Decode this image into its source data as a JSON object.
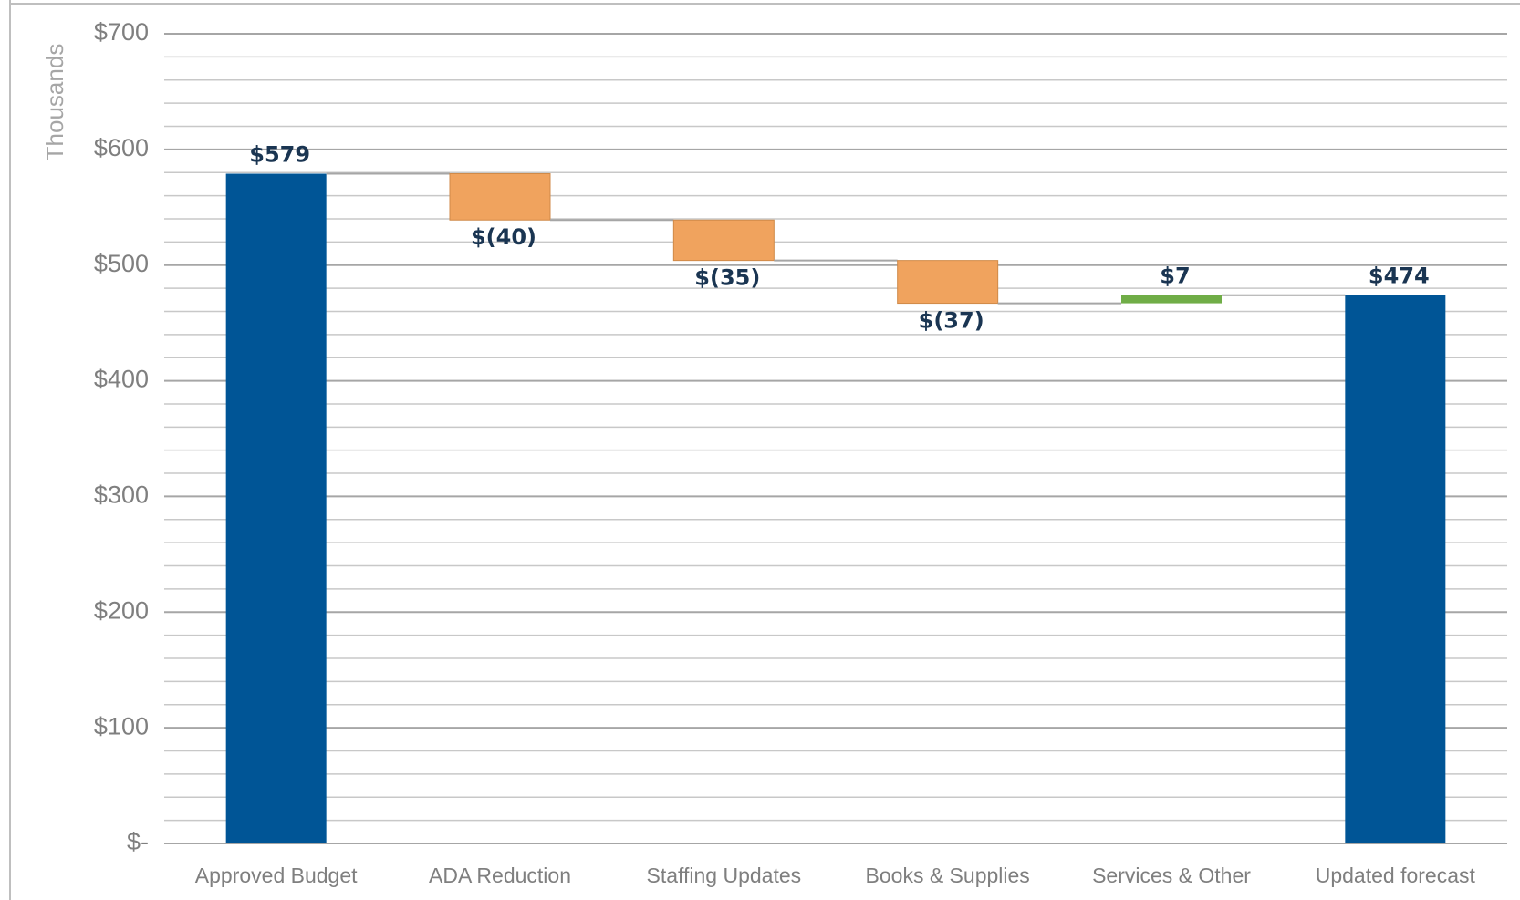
{
  "chart_data": {
    "type": "waterfall",
    "y_label": "Thousands",
    "categories": [
      "Approved Budget",
      "ADA Reduction",
      "Staffing Updates",
      "Books & Supplies",
      "Services & Other",
      "Updated forecast"
    ],
    "values": [
      579,
      -40,
      -35,
      -37,
      7,
      474
    ],
    "value_labels": [
      "$579",
      "$(40)",
      "$(35)",
      "$(37)",
      "$7",
      "$474"
    ],
    "totals": [
      true,
      false,
      false,
      false,
      false,
      true
    ],
    "colors": {
      "total": "#005596",
      "decrease": "#f0a35e",
      "increase": "#70ad47"
    },
    "ylim": [
      0,
      700
    ],
    "yticks": [
      {
        "value": 0,
        "label": "$-"
      },
      {
        "value": 100,
        "label": "$100"
      },
      {
        "value": 200,
        "label": "$200"
      },
      {
        "value": 300,
        "label": "$300"
      },
      {
        "value": 400,
        "label": "$400"
      },
      {
        "value": 500,
        "label": "$500"
      },
      {
        "value": 600,
        "label": "$600"
      },
      {
        "value": 700,
        "label": "$700"
      }
    ],
    "minor_yticks": [
      20,
      40,
      60,
      80,
      120,
      140,
      160,
      180,
      220,
      240,
      260,
      280,
      320,
      340,
      360,
      380,
      420,
      440,
      460,
      480,
      520,
      540,
      560,
      580,
      620,
      640,
      660,
      680
    ],
    "grid": true
  }
}
